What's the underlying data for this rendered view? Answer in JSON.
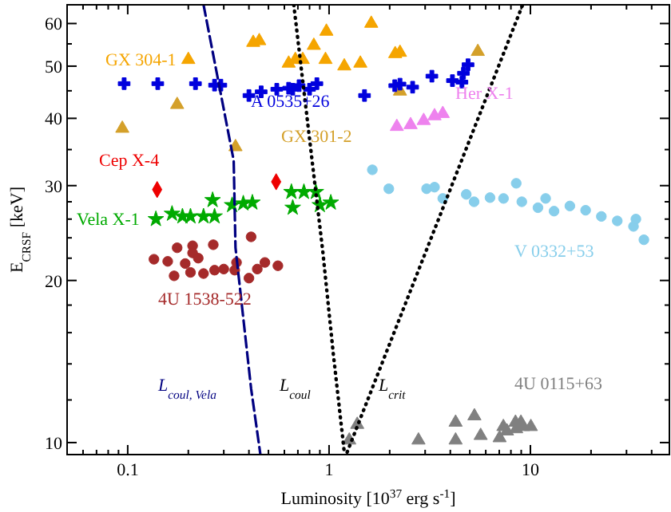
{
  "chart_data": {
    "type": "scatter",
    "xlabel": "Luminosity [10$^{37}$ erg s$^{-1}$]",
    "ylabel": "E$_{CRSF}$ [keV]",
    "log": "xy",
    "xlim": [
      0.05,
      49
    ],
    "ylim": [
      9.5,
      65
    ],
    "xticks": [
      {
        "value": 0.06,
        "label": null
      },
      {
        "value": 0.07,
        "label": null
      },
      {
        "value": 0.08,
        "label": null
      },
      {
        "value": 0.09,
        "label": null
      },
      0.1,
      {
        "value": 0.2,
        "label": null
      },
      {
        "value": 0.3,
        "label": null
      },
      {
        "value": 0.4,
        "label": null
      },
      {
        "value": 0.5,
        "label": null
      },
      {
        "value": 0.6,
        "label": null
      },
      {
        "value": 0.7,
        "label": null
      },
      {
        "value": 0.8,
        "label": null
      },
      {
        "value": 0.9,
        "label": null
      },
      1,
      {
        "value": 2,
        "label": null
      },
      {
        "value": 3,
        "label": null
      },
      {
        "value": 4,
        "label": null
      },
      {
        "value": 5,
        "label": null
      },
      {
        "value": 6,
        "label": null
      },
      {
        "value": 7,
        "label": null
      },
      {
        "value": 8,
        "label": null
      },
      {
        "value": 9,
        "label": null
      },
      10,
      {
        "value": 20,
        "label": null
      },
      {
        "value": 30,
        "label": null
      },
      {
        "value": 40,
        "label": null
      }
    ],
    "yticks": [
      10,
      {
        "value": 12,
        "label": null
      },
      {
        "value": 14,
        "label": null
      },
      {
        "value": 16,
        "label": null
      },
      {
        "value": 18,
        "label": null
      },
      20,
      {
        "value": 22,
        "label": null
      },
      {
        "value": 24,
        "label": null
      },
      {
        "value": 26,
        "label": null
      },
      {
        "value": 28,
        "label": null
      },
      30,
      {
        "value": 35,
        "label": null
      },
      40,
      {
        "value": 45,
        "label": null
      },
      50,
      {
        "value": 55,
        "label": null
      },
      60
    ],
    "series": [
      {
        "name": "GX 304-1",
        "color": "#f5a500",
        "marker": "triangle",
        "x": [
          0.2,
          0.42,
          0.45,
          0.63,
          0.68,
          0.74,
          0.84,
          0.97,
          1.62,
          0.96,
          1.19,
          1.43,
          2.13,
          2.25
        ],
        "values": [
          51.4,
          55.3,
          55.7,
          50.6,
          51.4,
          51.4,
          54.6,
          58,
          60,
          51.4,
          50,
          50.6,
          52.7,
          53
        ]
      },
      {
        "name": "GX 301-2",
        "color": "#d4a02a",
        "marker": "triangle",
        "x": [
          0.094,
          0.176,
          0.343,
          2.25,
          5.48
        ],
        "values": [
          38.3,
          42.4,
          35.4,
          44.9,
          53.2
        ]
      },
      {
        "name": "A 0535+26",
        "color": "#0000dd",
        "marker": "cross",
        "x": [
          0.096,
          0.141,
          0.217,
          0.27,
          0.29,
          0.4,
          0.46,
          0.55,
          0.63,
          0.66,
          0.71,
          0.8,
          0.87,
          1.5,
          2.12,
          2.25,
          2.6,
          3.24,
          4.1,
          4.57,
          4.65,
          4.9
        ],
        "values": [
          46.4,
          46.4,
          46.4,
          46.1,
          46.1,
          44.1,
          44.8,
          45.3,
          45.5,
          45.3,
          46,
          45.3,
          46.4,
          44.1,
          46,
          46.3,
          45.7,
          47.9,
          47,
          46.7,
          48.5,
          50.3
        ]
      },
      {
        "name": "Her X-1",
        "color": "#ee82ee",
        "marker": "triangle",
        "x": [
          2.17,
          2.54,
          2.95,
          3.34,
          3.67
        ],
        "values": [
          38.6,
          38.9,
          39.6,
          40.4,
          40.8
        ]
      },
      {
        "name": "V 0332+53",
        "color": "#87ceeb",
        "marker": "circle",
        "x": [
          1.64,
          1.98,
          3.05,
          3.34,
          3.67,
          4.8,
          5.25,
          6.3,
          7.35,
          8.5,
          9.06,
          10.9,
          11.9,
          13.1,
          15.7,
          18.8,
          22.5,
          27,
          32.5,
          33.4,
          36.6
        ],
        "values": [
          32.1,
          29.6,
          29.6,
          29.8,
          28.4,
          28.9,
          28,
          28.5,
          28.4,
          30.3,
          28,
          27.3,
          28.4,
          26.9,
          27.5,
          27,
          26.3,
          25.8,
          25.2,
          26,
          23.8
        ]
      },
      {
        "name": "Vela X-1",
        "color": "#00aa00",
        "marker": "star",
        "x": [
          0.138,
          0.166,
          0.187,
          0.205,
          0.238,
          0.27,
          0.264,
          0.33,
          0.375,
          0.416,
          0.65,
          0.66,
          0.75,
          0.86,
          0.9,
          1.02
        ],
        "values": [
          26,
          26.6,
          26.3,
          26.3,
          26.3,
          26.3,
          28.2,
          27.6,
          27.8,
          27.9,
          29.2,
          27.3,
          29.2,
          29.2,
          27.6,
          27.9
        ]
      },
      {
        "name": "Cep X-4",
        "color": "#ee0000",
        "marker": "diamond",
        "x": [
          0.14,
          0.546
        ],
        "values": [
          29.5,
          30.5
        ]
      },
      {
        "name": "4U 1538-522",
        "color": "#a52a2a",
        "marker": "circle",
        "x": [
          0.176,
          0.21,
          0.266,
          0.41,
          0.135,
          0.158,
          0.193,
          0.21,
          0.224,
          0.347,
          0.48,
          0.557,
          0.17,
          0.205,
          0.238,
          0.27,
          0.3,
          0.34,
          0.4,
          0.44
        ],
        "values": [
          23,
          23.2,
          23.3,
          24.1,
          21.9,
          21.7,
          21.5,
          22.5,
          22,
          21.6,
          21.6,
          21.3,
          20.4,
          20.7,
          20.6,
          20.9,
          21,
          20.9,
          20.2,
          21
        ]
      },
      {
        "name": "4U 0115+63",
        "color": "#808080",
        "marker": "triangle",
        "x": [
          1.38,
          1.26,
          2.78,
          4.25,
          4.25,
          5.27,
          5.66,
          7.03,
          7.34,
          7.65,
          8.43,
          8.5,
          8.97,
          9.2,
          10.05
        ],
        "values": [
          10.8,
          10.1,
          10.1,
          10.9,
          10.1,
          11.2,
          10.3,
          10.2,
          10.7,
          10.5,
          10.9,
          10.6,
          10.9,
          10.7,
          10.7
        ]
      },
      {
        "name": "L$_{coul, Vela}$",
        "type": "line",
        "color": "#000080",
        "line_style": "dashed",
        "x": [
          0.238,
          0.336,
          0.343,
          0.41,
          0.456
        ],
        "values": [
          65,
          33.4,
          23,
          12.6,
          9.5
        ]
      },
      {
        "name": "L$_{coul}$",
        "type": "line",
        "color": "#000000",
        "line_style": "dotted",
        "x": [
          0.668,
          0.93,
          1.05,
          1.19
        ],
        "values": [
          65,
          22.7,
          14.6,
          9.6
        ]
      },
      {
        "name": "L$_{crit}$",
        "type": "line",
        "color": "#000000",
        "line_style": "dotted",
        "x": [
          1.23,
          9.15
        ],
        "values": [
          9.6,
          65
        ]
      }
    ]
  }
}
